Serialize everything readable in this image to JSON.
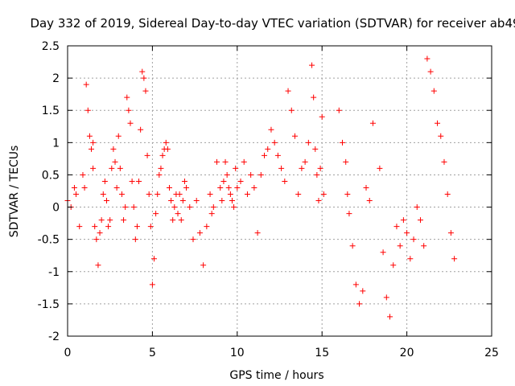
{
  "chart_data": {
    "type": "scatter",
    "title": "Day 332 of 2019, Sidereal Day-to-day VTEC variation (SDTVAR) for receiver ab49",
    "xlabel": "GPS time / hours",
    "ylabel": "SDTVAR / TECUs",
    "xlim": [
      0,
      25
    ],
    "ylim": [
      -2,
      2.5
    ],
    "xticks": [
      "0",
      "5",
      "10",
      "15",
      "20",
      "25"
    ],
    "yticks": [
      "-2",
      "-1.5",
      "-1",
      "-0.5",
      "0",
      "0.5",
      "1",
      "1.5",
      "2",
      "2.5"
    ],
    "grid": true,
    "marker": "+",
    "color": "#ff0000",
    "series": [
      {
        "name": "SDTVAR",
        "x": [
          0.0,
          0.2,
          0.4,
          0.5,
          0.7,
          0.9,
          1.0,
          1.1,
          1.2,
          1.3,
          1.4,
          1.5,
          1.5,
          1.6,
          1.7,
          1.8,
          1.9,
          2.0,
          2.1,
          2.2,
          2.3,
          2.4,
          2.5,
          2.6,
          2.7,
          2.8,
          2.9,
          3.0,
          3.1,
          3.2,
          3.3,
          3.4,
          3.5,
          3.6,
          3.7,
          3.8,
          3.9,
          4.0,
          4.1,
          4.2,
          4.3,
          4.4,
          4.5,
          4.6,
          4.7,
          4.8,
          4.9,
          5.0,
          5.1,
          5.2,
          5.3,
          5.4,
          5.5,
          5.6,
          5.7,
          5.8,
          5.9,
          6.0,
          6.1,
          6.2,
          6.3,
          6.4,
          6.5,
          6.6,
          6.7,
          6.8,
          6.9,
          7.0,
          7.2,
          7.4,
          7.6,
          7.8,
          8.0,
          8.2,
          8.4,
          8.5,
          8.6,
          8.8,
          9.0,
          9.1,
          9.2,
          9.3,
          9.4,
          9.5,
          9.6,
          9.7,
          9.8,
          9.9,
          10.0,
          10.2,
          10.4,
          10.6,
          10.8,
          11.0,
          11.2,
          11.4,
          11.6,
          11.8,
          12.0,
          12.2,
          12.4,
          12.6,
          12.8,
          13.0,
          13.2,
          13.4,
          13.6,
          13.8,
          14.0,
          14.2,
          14.4,
          14.5,
          14.6,
          14.7,
          14.8,
          14.9,
          15.0,
          15.1,
          16.0,
          16.2,
          16.4,
          16.5,
          16.6,
          16.8,
          17.0,
          17.2,
          17.4,
          17.6,
          17.8,
          18.0,
          18.4,
          18.6,
          18.8,
          19.0,
          19.2,
          19.4,
          19.6,
          19.8,
          20.0,
          20.2,
          20.4,
          20.6,
          20.8,
          21.0,
          21.2,
          21.4,
          21.6,
          21.8,
          22.0,
          22.2,
          22.4,
          22.6,
          22.8
        ],
        "y": [
          0.1,
          0.0,
          0.3,
          0.2,
          -0.3,
          0.5,
          0.3,
          1.9,
          1.5,
          1.1,
          0.9,
          1.0,
          0.6,
          -0.3,
          -0.5,
          -0.9,
          -0.4,
          -0.2,
          0.2,
          0.4,
          0.1,
          -0.3,
          -0.2,
          0.6,
          0.9,
          0.7,
          0.3,
          1.1,
          0.6,
          0.2,
          -0.2,
          0.0,
          1.7,
          1.5,
          1.3,
          0.4,
          0.0,
          -0.5,
          -0.3,
          0.4,
          1.2,
          2.1,
          2.0,
          1.8,
          0.8,
          0.2,
          -0.3,
          -1.2,
          -0.8,
          -0.1,
          0.2,
          0.5,
          0.6,
          0.8,
          0.9,
          1.0,
          0.9,
          0.3,
          0.1,
          -0.2,
          0.0,
          0.2,
          -0.1,
          0.2,
          -0.2,
          0.1,
          0.4,
          0.3,
          0.0,
          -0.5,
          0.1,
          -0.4,
          -0.9,
          -0.3,
          0.2,
          -0.1,
          0.0,
          0.7,
          0.3,
          0.1,
          0.4,
          0.7,
          0.5,
          0.3,
          0.2,
          0.1,
          0.0,
          0.6,
          0.3,
          0.4,
          0.7,
          0.2,
          0.5,
          0.3,
          -0.4,
          0.5,
          0.8,
          0.9,
          1.2,
          1.0,
          0.8,
          0.6,
          0.4,
          1.8,
          1.5,
          1.1,
          0.2,
          0.6,
          0.7,
          1.0,
          2.2,
          1.7,
          0.9,
          0.5,
          0.1,
          0.6,
          1.4,
          0.2,
          1.5,
          1.0,
          0.7,
          0.2,
          -0.1,
          -0.6,
          -1.2,
          -1.5,
          -1.3,
          0.3,
          0.1,
          1.3,
          0.6,
          -0.7,
          -1.4,
          -1.7,
          -0.9,
          -0.3,
          -0.6,
          -0.2,
          -0.4,
          -0.8,
          -0.5,
          0.0,
          -0.2,
          -0.6,
          2.3,
          2.1,
          1.8,
          1.3,
          1.1,
          0.7,
          0.2,
          -0.4,
          -0.8
        ]
      }
    ]
  }
}
